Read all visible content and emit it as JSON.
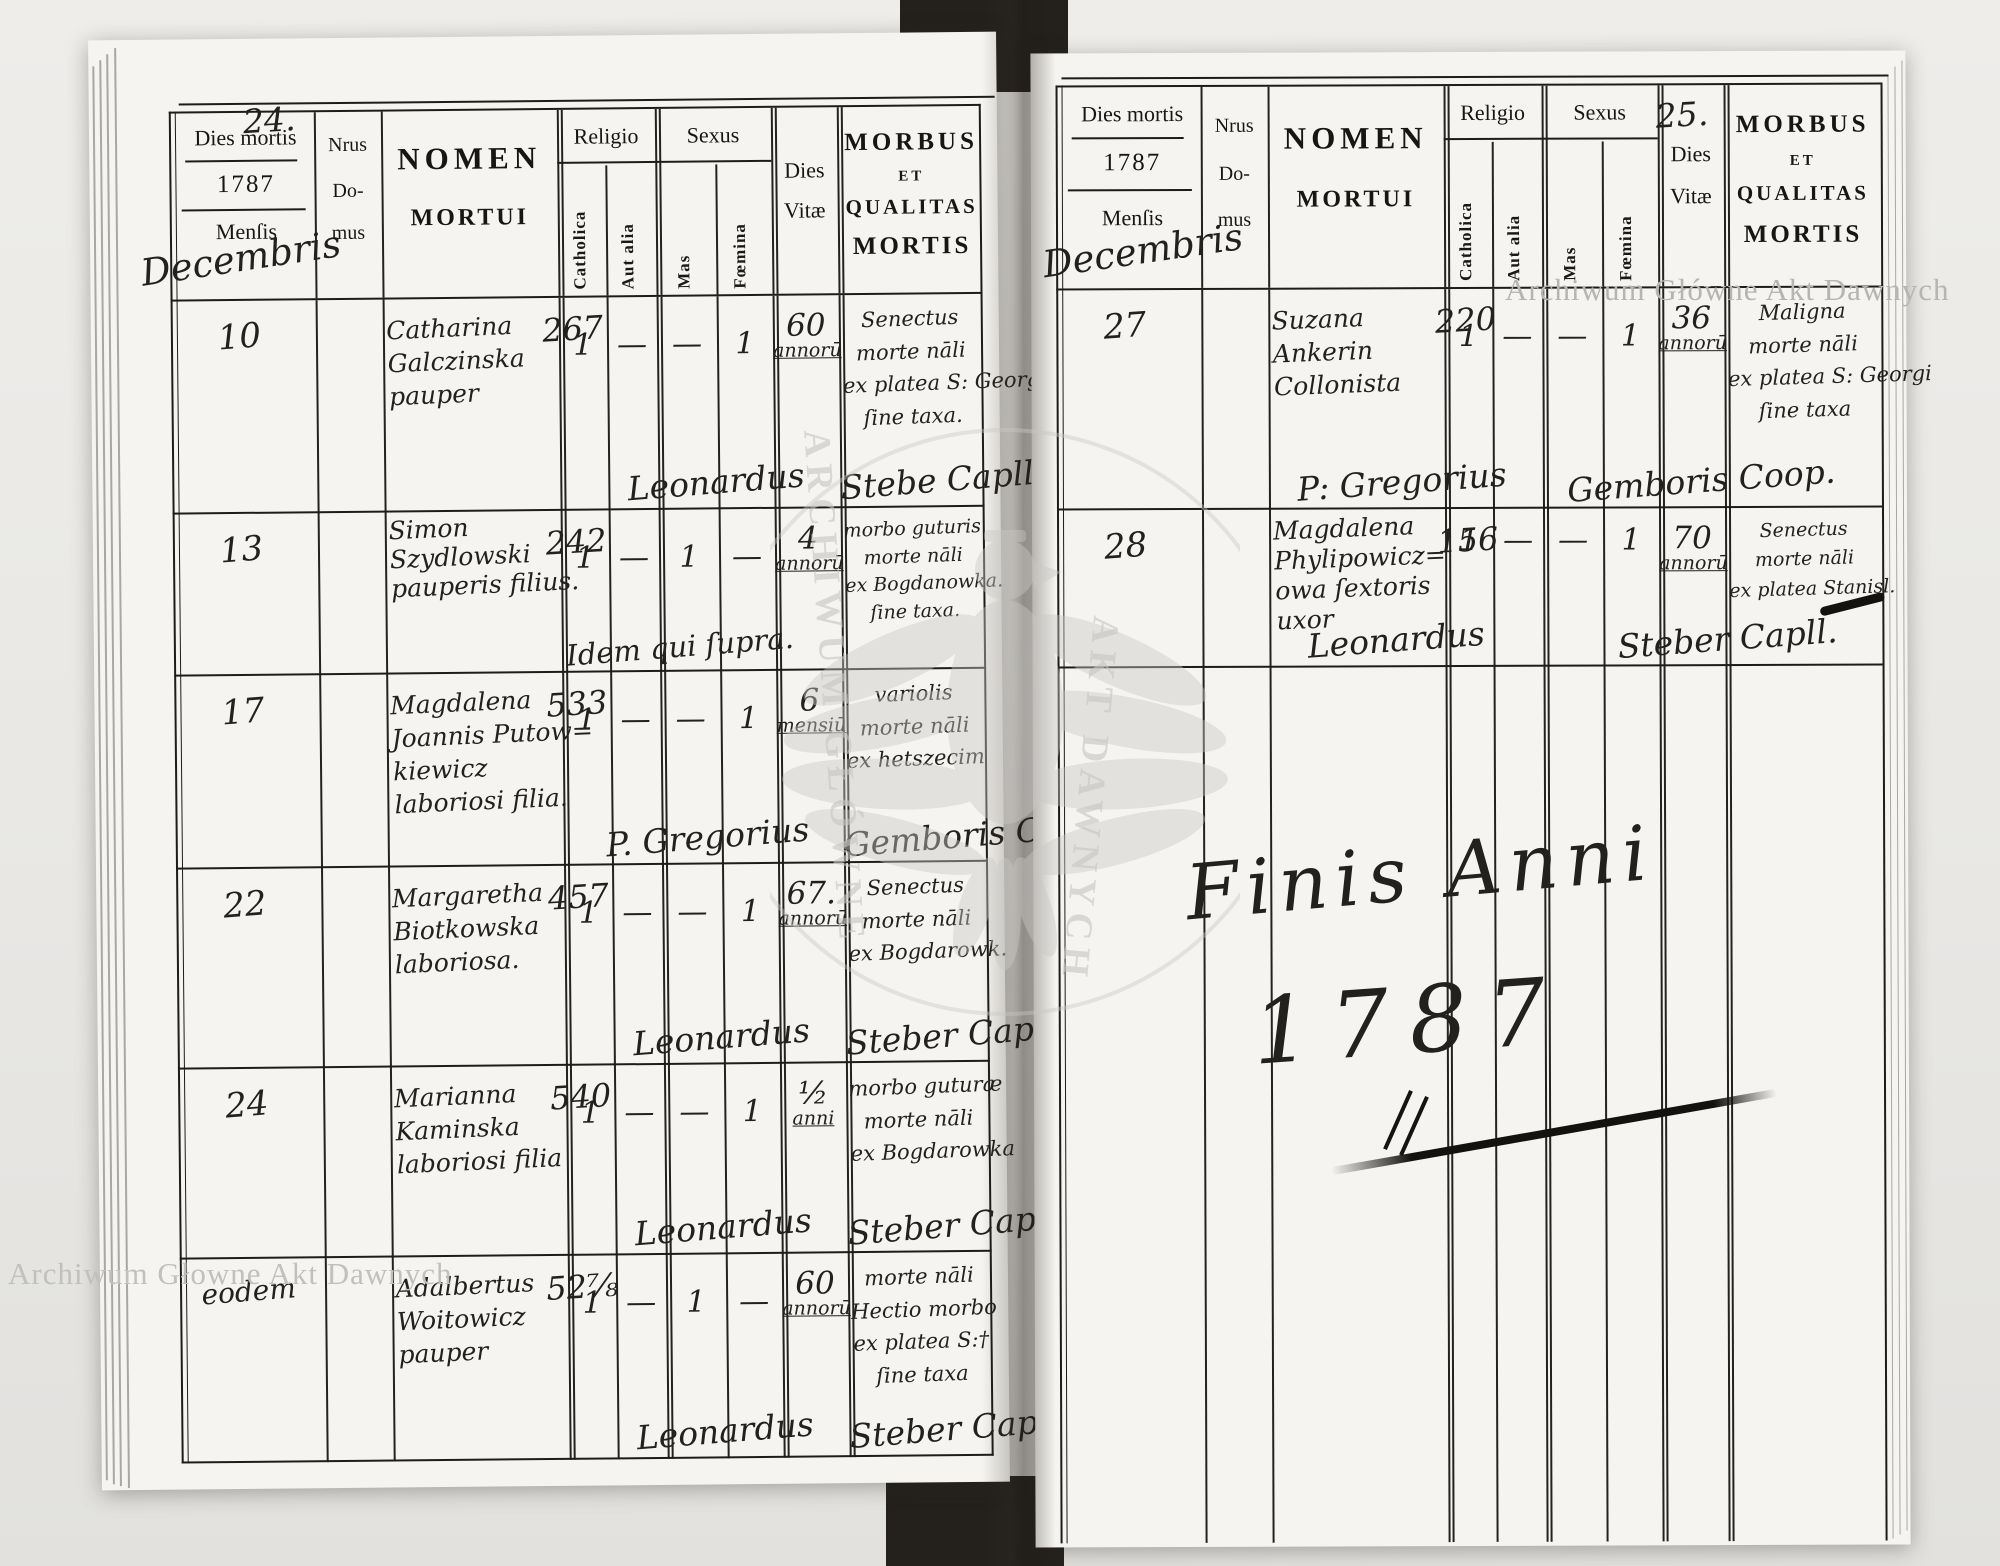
{
  "labels": {
    "dies_mortis": "Dies mortis",
    "year": "1787",
    "mensis": "Menſis",
    "nrus": "Nrus",
    "do_line": "Do-",
    "mus_line": "mus",
    "nomen": "NOMEN",
    "mortui": "MORTUI",
    "religio": "Religio",
    "sexus": "Sexus",
    "catholica": "Catholica",
    "aut_alia": "Aut alia",
    "mas": "Mas",
    "foemina": "Fœmina",
    "dies": "Dies",
    "vitae": "Vitæ",
    "morbus": "MORBUS",
    "et": "ET",
    "qualitas": "QUALITAS",
    "mortis": "MORTIS"
  },
  "watermarks": {
    "top_right": "Archiwum Główne Akt Dawnych",
    "bottom_left": "Archiwum Głowne Akt Dawnych",
    "seal_line1": "ARCHIWUM GŁÓWNE",
    "seal_line2": "AKT DAWNYCH"
  },
  "left_page": {
    "page_number": "24.",
    "month": "Decembris",
    "rows": [
      {
        "dies": "10",
        "domus": "267",
        "name_lines": [
          "Catharina",
          "Galczinska",
          "pauper"
        ],
        "catholica": "1",
        "aut_alia": "—",
        "mas": "—",
        "foemina": "1",
        "vitae_lines": [
          "60",
          "annorū"
        ],
        "morbus_lines": [
          "Senectus",
          "morte nāli",
          "ex platea S: Georgi",
          "ſine taxa."
        ],
        "sig_a": "Leonardus",
        "sig_b": "Stebe Capll."
      },
      {
        "dies": "13",
        "domus": "242",
        "name_lines": [
          "Simon",
          "Szydlowski",
          "pauperis filius."
        ],
        "catholica": "1",
        "aut_alia": "—",
        "mas": "1",
        "foemina": "—",
        "vitae_lines": [
          "4",
          "annorū"
        ],
        "morbus_lines": [
          "morbo guturis",
          "morte nāli",
          "ex Bogdanowka.",
          "ſine taxa."
        ],
        "sig_a": "Idem qui ſupra.",
        "sig_b": ""
      },
      {
        "dies": "17",
        "domus": "533",
        "name_lines": [
          "Magdalena",
          "Joannis Putow=",
          "kiewicz",
          "laboriosi filia."
        ],
        "catholica": "1",
        "aut_alia": "—",
        "mas": "—",
        "foemina": "1",
        "vitae_lines": [
          "6",
          "mensiū"
        ],
        "morbus_lines": [
          "variolis",
          "morte nāli",
          "ex hetszecim"
        ],
        "sig_a": "P. Gregorius",
        "sig_b": "Gemboris Coop."
      },
      {
        "dies": "22",
        "domus": "457",
        "name_lines": [
          "Margaretha",
          "Biotkowska",
          "laboriosa."
        ],
        "catholica": "1",
        "aut_alia": "—",
        "mas": "—",
        "foemina": "1",
        "vitae_lines": [
          "67.",
          "annorū"
        ],
        "morbus_lines": [
          "Senectus",
          "morte nāli",
          "ex Bogdarowk."
        ],
        "sig_a": "Leonardus",
        "sig_b": "Steber Capll."
      },
      {
        "dies": "24",
        "domus": "540",
        "name_lines": [
          "Marianna",
          "Kaminska",
          "laboriosi filia"
        ],
        "catholica": "1",
        "aut_alia": "—",
        "mas": "—",
        "foemina": "1",
        "vitae_lines": [
          "½",
          "anni"
        ],
        "morbus_lines": [
          "morbo guturæ",
          "morte nāli",
          "ex Bogdarowka"
        ],
        "sig_a": "Leonardus",
        "sig_b": "Steber Capll."
      },
      {
        "dies": "eodem",
        "domus": "52⅞",
        "name_lines": [
          "Adalbertus",
          "Woitowicz",
          "pauper"
        ],
        "catholica": "1",
        "aut_alia": "—",
        "mas": "1",
        "foemina": "—",
        "vitae_lines": [
          "60",
          "annorū"
        ],
        "morbus_lines": [
          "morte nāli",
          "Hectio morbo",
          "ex platea S:†",
          "ſine taxa"
        ],
        "sig_a": "Leonardus",
        "sig_b": "Steber Cap."
      }
    ]
  },
  "right_page": {
    "page_number": "25.",
    "month": "Decembris",
    "rows": [
      {
        "dies": "27",
        "domus": "220",
        "name_lines": [
          "Suzana",
          "Ankerin",
          "Collonista"
        ],
        "catholica": "1",
        "aut_alia": "—",
        "mas": "—",
        "foemina": "1",
        "vitae_lines": [
          "36",
          "annorū"
        ],
        "morbus_lines": [
          "Maligna",
          "morte nāli",
          "ex platea S: Georgi",
          "ſine taxa"
        ],
        "sig_a": "P: Gregorius",
        "sig_b": "Gemboris Coop."
      },
      {
        "dies": "28",
        "domus": "156",
        "name_lines": [
          "Magdalena",
          "Phylipowicz=",
          "owa ſextoris",
          "uxor"
        ],
        "catholica": "1",
        "aut_alia": "—",
        "mas": "—",
        "foemina": "1",
        "vitae_lines": [
          "70",
          "annorū"
        ],
        "morbus_lines": [
          "Senectus",
          "morte nāli",
          "ex platea Stanisl."
        ],
        "sig_a": "Leonardus",
        "sig_b": "Steber Capll."
      }
    ],
    "finis_line1": "Finis Anni",
    "finis_line2": "1787"
  }
}
